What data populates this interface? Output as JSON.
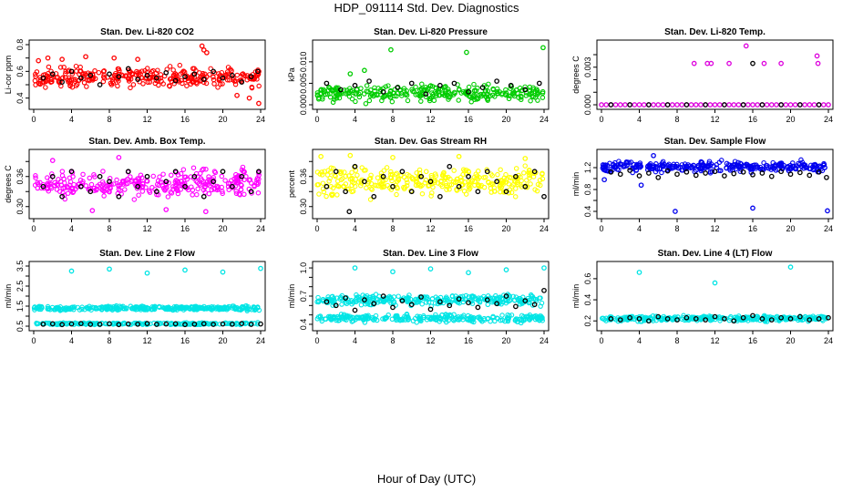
{
  "figure": {
    "title": "HDP_091114  Std. Dev. Diagnostics",
    "xlabel": "Hour of Day (UTC)"
  },
  "chart_data": [
    {
      "type": "scatter",
      "title": "Stan. Dev. Li-820 CO2",
      "ylabel": "Li-cor ppm",
      "xlim": [
        0,
        24
      ],
      "ylim": [
        0.35,
        0.8
      ],
      "xticks": [
        0,
        4,
        8,
        12,
        16,
        20,
        24
      ],
      "yticks": [
        0.4,
        0.5,
        0.6,
        0.7,
        0.8
      ],
      "ytick_labels": [
        "0.4",
        "",
        "0.6",
        "",
        "0.8"
      ],
      "colors": [
        "#ff0000",
        "#000000"
      ],
      "band": {
        "y_min": 0.45,
        "y_max": 0.66,
        "y_mid": 0.56,
        "n": 320
      },
      "series": [
        {
          "color": "#ff0000",
          "x": [
            0.5,
            1.5,
            3.0,
            5.5,
            8.5,
            11.0,
            17.8,
            18.0,
            18.3,
            23.8,
            21.5,
            22.8
          ],
          "y": [
            0.68,
            0.7,
            0.69,
            0.71,
            0.7,
            0.69,
            0.79,
            0.76,
            0.74,
            0.36,
            0.42,
            0.4
          ]
        },
        {
          "color": "#000000",
          "x": [
            1,
            2,
            3,
            4,
            5,
            6,
            7,
            8,
            9,
            10,
            11,
            12,
            13,
            14,
            15,
            16,
            17,
            18,
            19,
            20,
            21,
            22,
            23,
            23.7
          ],
          "y": [
            0.55,
            0.58,
            0.52,
            0.6,
            0.55,
            0.57,
            0.5,
            0.58,
            0.56,
            0.62,
            0.54,
            0.57,
            0.55,
            0.59,
            0.53,
            0.56,
            0.58,
            0.54,
            0.6,
            0.55,
            0.57,
            0.52,
            0.56,
            0.6
          ]
        }
      ]
    },
    {
      "type": "scatter",
      "title": "Stan. Dev. Li-820 Pressure",
      "ylabel": "kPa",
      "xlim": [
        0,
        24
      ],
      "ylim": [
        0,
        0.014
      ],
      "xticks": [
        0,
        4,
        8,
        12,
        16,
        20,
        24
      ],
      "yticks": [
        0,
        0.005,
        0.01
      ],
      "ytick_labels": [
        "0.000",
        "0.005",
        "0.010"
      ],
      "colors": [
        "#00cc00",
        "#000000"
      ],
      "band": {
        "y_min": 0.0,
        "y_max": 0.0055,
        "y_mid": 0.0025,
        "n": 300
      },
      "series": [
        {
          "color": "#00cc00",
          "x": [
            7.8,
            15.8,
            23.9,
            5.0,
            3.5
          ],
          "y": [
            0.0128,
            0.0122,
            0.0133,
            0.008,
            0.0072
          ]
        },
        {
          "color": "#000000",
          "x": [
            1,
            2.5,
            4,
            5.5,
            7,
            8.5,
            10,
            11.5,
            13,
            14.5,
            16,
            17.5,
            19,
            20.5,
            22,
            23.5
          ],
          "y": [
            0.005,
            0.0035,
            0.0045,
            0.0055,
            0.003,
            0.004,
            0.005,
            0.0025,
            0.0045,
            0.005,
            0.003,
            0.004,
            0.0055,
            0.0045,
            0.0035,
            0.005
          ]
        }
      ]
    },
    {
      "type": "scatter",
      "title": "Stan. Dev. Li-820 Temp.",
      "ylabel": "degrees C",
      "xlim": [
        0,
        24
      ],
      "ylim": [
        0,
        0.0048
      ],
      "xticks": [
        0,
        4,
        8,
        12,
        16,
        20,
        24
      ],
      "yticks": [
        0,
        0.001,
        0.002,
        0.003,
        0.004
      ],
      "ytick_labels": [
        "0.000",
        "",
        "",
        "0.003",
        ""
      ],
      "colors": [
        "#dd00dd",
        "#000000"
      ],
      "series": [
        {
          "color": "#dd00dd",
          "x": [
            0,
            0.5,
            1,
            1.5,
            2,
            2.5,
            3,
            3.5,
            4,
            4.5,
            5,
            5.5,
            6,
            6.5,
            7,
            7.5,
            8,
            8.5,
            9,
            9.5,
            10,
            10.5,
            11,
            11.5,
            12,
            12.5,
            13,
            13.5,
            14,
            14.5,
            15,
            15.5,
            16,
            16.5,
            17,
            17.5,
            18,
            18.5,
            19,
            19.5,
            20,
            20.5,
            21,
            21.5,
            22,
            22.5,
            23,
            23.5,
            24
          ],
          "y": [
            0,
            0,
            0,
            0,
            0,
            0,
            0,
            0,
            0,
            0,
            0,
            0,
            0,
            0,
            0,
            0,
            0,
            0,
            0,
            0,
            0,
            0,
            0,
            0,
            0,
            0,
            0,
            0,
            0,
            0,
            0,
            0,
            0,
            0,
            0,
            0,
            0,
            0,
            0,
            0,
            0,
            0,
            0,
            0,
            0,
            0,
            0,
            0,
            0
          ]
        },
        {
          "color": "#dd00dd",
          "x": [
            9.8,
            11.2,
            11.6,
            13.5,
            15.3,
            17.2,
            19.0,
            22.8,
            22.9
          ],
          "y": [
            0.0033,
            0.0033,
            0.0033,
            0.0033,
            0.0047,
            0.0033,
            0.0033,
            0.0039,
            0.0033
          ]
        },
        {
          "color": "#000000",
          "x": [
            1,
            3,
            5,
            7,
            9,
            11,
            13,
            15,
            16.0,
            17,
            19,
            21,
            23
          ],
          "y": [
            0,
            0,
            0,
            0,
            0,
            0,
            0,
            0,
            0.0033,
            0,
            0,
            0,
            0
          ]
        }
      ]
    },
    {
      "type": "scatter",
      "title": "Stan. Dev. Amb. Box Temp.",
      "ylabel": "degrees C",
      "xlim": [
        0,
        24
      ],
      "ylim": [
        0.285,
        0.405
      ],
      "xticks": [
        0,
        4,
        8,
        12,
        16,
        20,
        24
      ],
      "yticks": [
        0.3,
        0.33,
        0.36,
        0.39
      ],
      "ytick_labels": [
        "0.30",
        "",
        "0.36",
        ""
      ],
      "colors": [
        "#ff00ff",
        "#000000"
      ],
      "band": {
        "y_min": 0.305,
        "y_max": 0.385,
        "y_mid": 0.345,
        "n": 320
      },
      "series": [
        {
          "color": "#ff00ff",
          "x": [
            6.2,
            14.0,
            18.2,
            9.0,
            2.0
          ],
          "y": [
            0.292,
            0.294,
            0.29,
            0.398,
            0.392
          ]
        },
        {
          "color": "#000000",
          "x": [
            1,
            2,
            3,
            4,
            5,
            6,
            7,
            8,
            9,
            10,
            11,
            12,
            13,
            14,
            15,
            16,
            17,
            18,
            19,
            20,
            21,
            22,
            23,
            23.8
          ],
          "y": [
            0.34,
            0.36,
            0.32,
            0.37,
            0.34,
            0.33,
            0.36,
            0.35,
            0.32,
            0.37,
            0.34,
            0.36,
            0.33,
            0.35,
            0.37,
            0.34,
            0.36,
            0.32,
            0.35,
            0.37,
            0.34,
            0.36,
            0.33,
            0.37
          ]
        }
      ]
    },
    {
      "type": "scatter",
      "title": "Stan. Dev. Gas Stream RH",
      "ylabel": "percent",
      "xlim": [
        0,
        24
      ],
      "ylim": [
        0.285,
        0.405
      ],
      "xticks": [
        0,
        4,
        8,
        12,
        16,
        20,
        24
      ],
      "yticks": [
        0.3,
        0.33,
        0.36,
        0.39
      ],
      "ytick_labels": [
        "0.30",
        "",
        "0.36",
        ""
      ],
      "colors": [
        "#ffff00",
        "#000000"
      ],
      "band": {
        "y_min": 0.31,
        "y_max": 0.39,
        "y_mid": 0.35,
        "n": 320
      },
      "series": [
        {
          "color": "#ffff00",
          "x": [
            0.4,
            3.5,
            8.0,
            15.0,
            22.0
          ],
          "y": [
            0.4,
            0.402,
            0.398,
            0.4,
            0.396
          ]
        },
        {
          "color": "#000000",
          "x": [
            1,
            2,
            3,
            3.4,
            4,
            5,
            6,
            7,
            8,
            9,
            10,
            11,
            12,
            13,
            14,
            15,
            16,
            17,
            18,
            19,
            20,
            21,
            22,
            23,
            24
          ],
          "y": [
            0.34,
            0.37,
            0.33,
            0.29,
            0.38,
            0.35,
            0.32,
            0.36,
            0.34,
            0.37,
            0.33,
            0.36,
            0.35,
            0.32,
            0.38,
            0.34,
            0.36,
            0.33,
            0.37,
            0.35,
            0.33,
            0.36,
            0.34,
            0.37,
            0.32
          ]
        }
      ]
    },
    {
      "type": "scatter",
      "title": "Stan. Dev. Sample Flow",
      "ylabel": "ml/min",
      "xlim": [
        0,
        24
      ],
      "ylim": [
        0.35,
        1.45
      ],
      "xticks": [
        0,
        4,
        8,
        12,
        16,
        20,
        24
      ],
      "yticks": [
        0.4,
        0.6,
        0.8,
        1.0,
        1.2
      ],
      "ytick_labels": [
        "0.4",
        "",
        "0.8",
        "",
        "1.2"
      ],
      "colors": [
        "#0000ee",
        "#000000"
      ],
      "band": {
        "y_min": 1.08,
        "y_max": 1.36,
        "y_mid": 1.22,
        "n": 320
      },
      "series": [
        {
          "color": "#0000ee",
          "x": [
            7.8,
            16.0,
            23.9,
            4.2,
            0.3,
            5.5
          ],
          "y": [
            0.4,
            0.46,
            0.41,
            0.88,
            0.98,
            1.42
          ]
        },
        {
          "color": "#000000",
          "x": [
            1,
            2,
            3,
            4,
            5,
            6,
            7,
            8,
            9,
            10,
            11,
            12,
            13,
            14,
            15,
            16,
            17,
            18,
            19,
            20,
            21,
            22,
            23,
            23.8
          ],
          "y": [
            1.12,
            1.08,
            1.15,
            1.05,
            1.1,
            1.02,
            1.14,
            1.08,
            1.12,
            1.06,
            1.1,
            1.13,
            1.05,
            1.09,
            1.12,
            1.07,
            1.1,
            1.04,
            1.13,
            1.08,
            1.11,
            1.06,
            1.12,
            1.02
          ]
        }
      ]
    },
    {
      "type": "scatter",
      "title": "Stan. Dev. Line 2 Flow",
      "ylabel": "ml/min",
      "xlim": [
        0,
        24
      ],
      "ylim": [
        0.5,
        3.5
      ],
      "xticks": [
        0,
        4,
        8,
        12,
        16,
        20,
        24
      ],
      "yticks": [
        0.5,
        1.0,
        1.5,
        2.0,
        2.5,
        3.0,
        3.5
      ],
      "ytick_labels": [
        "0.5",
        "",
        "1.5",
        "",
        "2.5",
        "",
        "3.5"
      ],
      "colors": [
        "#00e5e5",
        "#000000"
      ],
      "band": {
        "y_min": 1.25,
        "y_max": 1.55,
        "y_mid": 1.4,
        "n": 320
      },
      "band2": {
        "y_min": 0.55,
        "y_max": 0.7,
        "y_mid": 0.6,
        "n": 200
      },
      "series": [
        {
          "color": "#00e5e5",
          "x": [
            4.0,
            8.0,
            12.0,
            16.0,
            20.0,
            24.0
          ],
          "y": [
            3.25,
            3.35,
            3.15,
            3.3,
            3.2,
            3.38
          ]
        },
        {
          "color": "#000000",
          "x": [
            1,
            2,
            3,
            4,
            5,
            6,
            7,
            8,
            9,
            10,
            11,
            12,
            13,
            14,
            15,
            16,
            17,
            18,
            19,
            20,
            21,
            22,
            23,
            24
          ],
          "y": [
            0.6,
            0.62,
            0.58,
            0.61,
            0.63,
            0.59,
            0.6,
            0.62,
            0.58,
            0.61,
            0.6,
            0.63,
            0.59,
            0.61,
            0.62,
            0.58,
            0.6,
            0.62,
            0.59,
            0.61,
            0.6,
            0.63,
            0.59,
            0.61
          ]
        }
      ]
    },
    {
      "type": "scatter",
      "title": "Stan. Dev. Line 3 Flow",
      "ylabel": "ml/min",
      "xlim": [
        0,
        24
      ],
      "ylim": [
        0.38,
        1.02
      ],
      "xticks": [
        0,
        4,
        8,
        12,
        16,
        20,
        24
      ],
      "yticks": [
        0.4,
        0.5,
        0.6,
        0.7,
        0.8,
        0.9,
        1.0
      ],
      "ytick_labels": [
        "0.4",
        "",
        "",
        "0.7",
        "",
        "",
        "1.0"
      ],
      "colors": [
        "#00e5e5",
        "#000000"
      ],
      "band": {
        "y_min": 0.58,
        "y_max": 0.74,
        "y_mid": 0.66,
        "n": 300
      },
      "band2": {
        "y_min": 0.41,
        "y_max": 0.52,
        "y_mid": 0.46,
        "n": 260
      },
      "series": [
        {
          "color": "#00e5e5",
          "x": [
            4.0,
            8.0,
            12.0,
            16.0,
            20.0,
            24.0
          ],
          "y": [
            1.0,
            0.96,
            0.99,
            0.95,
            0.98,
            1.0
          ]
        },
        {
          "color": "#000000",
          "x": [
            1,
            2,
            3,
            4,
            5,
            6,
            7,
            8,
            9,
            10,
            11,
            12,
            13,
            14,
            15,
            16,
            17,
            18,
            19,
            20,
            21,
            22,
            23,
            24
          ],
          "y": [
            0.64,
            0.6,
            0.68,
            0.55,
            0.66,
            0.62,
            0.7,
            0.58,
            0.65,
            0.61,
            0.69,
            0.56,
            0.64,
            0.6,
            0.67,
            0.63,
            0.58,
            0.66,
            0.62,
            0.7,
            0.59,
            0.65,
            0.61,
            0.76
          ]
        }
      ]
    },
    {
      "type": "scatter",
      "title": "Stan. Dev. Line 4 (LT) Flow",
      "ylabel": "ml/min",
      "xlim": [
        0,
        24
      ],
      "ylim": [
        0.15,
        0.72
      ],
      "xticks": [
        0,
        4,
        8,
        12,
        16,
        20,
        24
      ],
      "yticks": [
        0.2,
        0.4,
        0.6
      ],
      "ytick_labels": [
        "0.2",
        "0.4",
        "0.6"
      ],
      "colors": [
        "#00e5e5",
        "#000000"
      ],
      "band": {
        "y_min": 0.19,
        "y_max": 0.26,
        "y_mid": 0.22,
        "n": 320
      },
      "series": [
        {
          "color": "#00e5e5",
          "x": [
            4.0,
            12.0,
            20.0
          ],
          "y": [
            0.66,
            0.56,
            0.71
          ]
        },
        {
          "color": "#000000",
          "x": [
            1,
            2,
            3,
            4,
            5,
            6,
            7,
            8,
            9,
            10,
            11,
            12,
            13,
            14,
            15,
            16,
            17,
            18,
            19,
            20,
            21,
            22,
            23,
            24
          ],
          "y": [
            0.22,
            0.21,
            0.23,
            0.22,
            0.2,
            0.24,
            0.22,
            0.21,
            0.23,
            0.22,
            0.21,
            0.24,
            0.22,
            0.2,
            0.23,
            0.25,
            0.22,
            0.21,
            0.23,
            0.22,
            0.24,
            0.21,
            0.22,
            0.23
          ]
        }
      ]
    }
  ]
}
